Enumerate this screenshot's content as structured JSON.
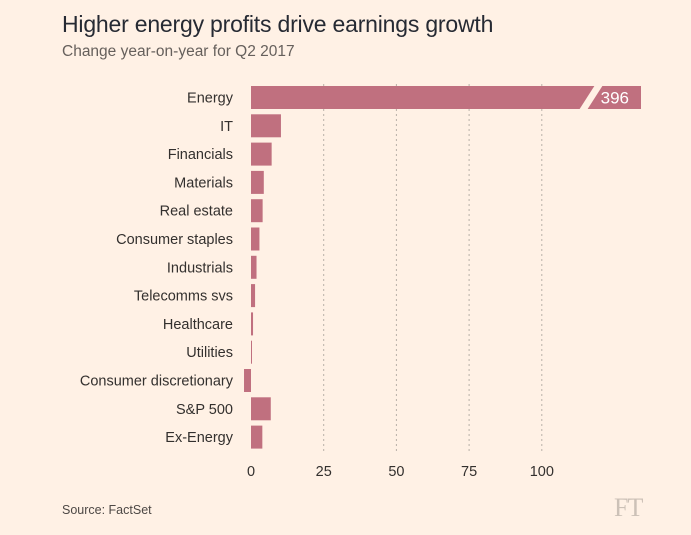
{
  "title": "Higher energy profits drive earnings growth",
  "subtitle": "Change year-on-year for Q2 2017",
  "source": "Source: FactSet",
  "logo": "FT",
  "colors": {
    "background": "#fff1e5",
    "bar": "#c0707f",
    "gridline": "#b8b0a8",
    "text": "#33302e"
  },
  "chart_data": {
    "type": "bar",
    "orientation": "horizontal",
    "title": "Higher energy profits drive earnings growth",
    "subtitle": "Change year-on-year for Q2 2017",
    "categories": [
      "Energy",
      "IT",
      "Financials",
      "Materials",
      "Real estate",
      "Consumer staples",
      "Industrials",
      "Telecomms svs",
      "Healthcare",
      "Utilities",
      "Consumer discretionary",
      "S&P 500",
      "Ex-Energy"
    ],
    "values": [
      396,
      10.3,
      7.1,
      4.4,
      4.0,
      2.9,
      1.9,
      1.4,
      0.7,
      0.2,
      -2.4,
      6.8,
      3.9
    ],
    "value_labels": {
      "Energy": "396"
    },
    "xticks": [
      0,
      25,
      50,
      75,
      100
    ],
    "xlim": [
      -5,
      135
    ],
    "axis_break": true,
    "grid": true
  }
}
